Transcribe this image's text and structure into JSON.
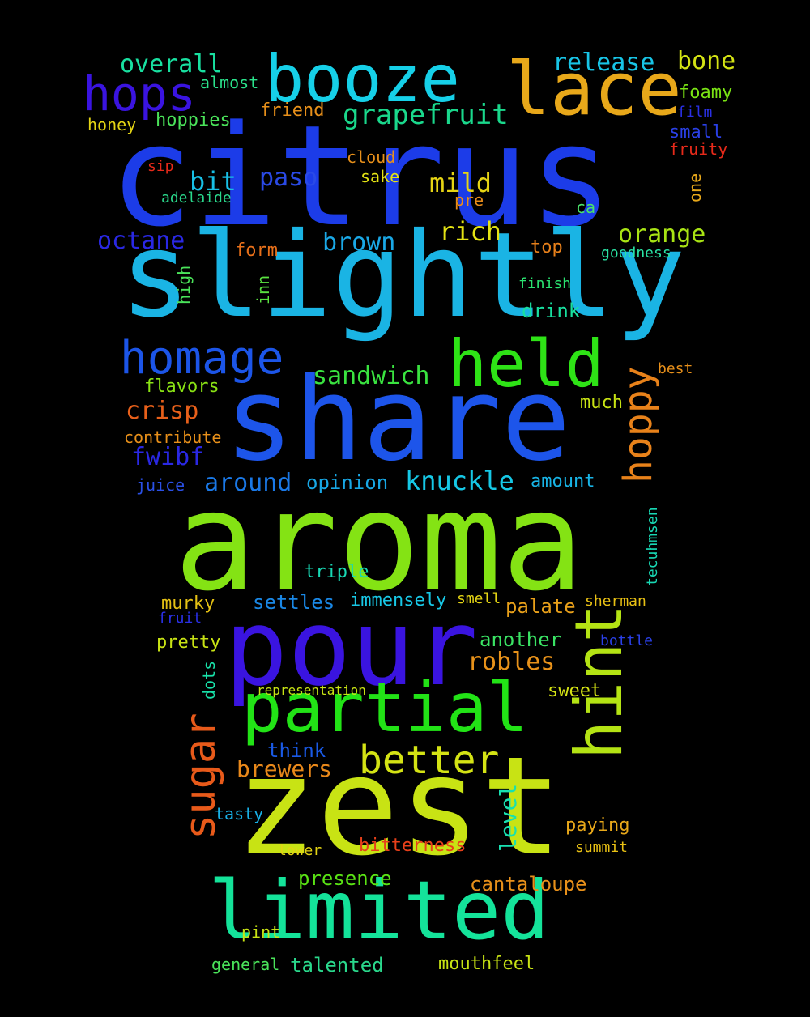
{
  "words": [
    {
      "text": "citrus",
      "color": "#1c3ce8"
    },
    {
      "text": "slightly",
      "color": "#1ab4e4"
    },
    {
      "text": "aroma",
      "color": "#84e314"
    },
    {
      "text": "zest",
      "color": "#c8e314"
    },
    {
      "text": "share",
      "color": "#1d55ea"
    },
    {
      "text": "pour",
      "color": "#3a14e0"
    },
    {
      "text": "limited",
      "color": "#14e39a"
    },
    {
      "text": "partial",
      "color": "#22e316"
    },
    {
      "text": "booze",
      "color": "#16d0e8"
    },
    {
      "text": "lace",
      "color": "#e8a81a"
    },
    {
      "text": "held",
      "color": "#2ee316"
    },
    {
      "text": "hint",
      "color": "#b4e314"
    },
    {
      "text": "homage",
      "color": "#1c55e8"
    },
    {
      "text": "hops",
      "color": "#3a14e0"
    },
    {
      "text": "better",
      "color": "#d4e314"
    },
    {
      "text": "sugar",
      "color": "#e85a1a"
    },
    {
      "text": "hoppy",
      "color": "#e8821a"
    },
    {
      "text": "grapefruit",
      "color": "#1ad88c"
    },
    {
      "text": "overall",
      "color": "#18e0a0"
    },
    {
      "text": "release",
      "color": "#18c4e6"
    },
    {
      "text": "bone",
      "color": "#d4e314"
    },
    {
      "text": "knuckle",
      "color": "#16c8e6"
    },
    {
      "text": "sandwich",
      "color": "#3ae340"
    },
    {
      "text": "orange",
      "color": "#a8e314"
    },
    {
      "text": "rich",
      "color": "#e4e314"
    },
    {
      "text": "mild",
      "color": "#e6d414"
    },
    {
      "text": "octane",
      "color": "#2a28e4"
    },
    {
      "text": "brown",
      "color": "#1aa8e6"
    },
    {
      "text": "paso",
      "color": "#2a4ae6"
    },
    {
      "text": "bit",
      "color": "#18c0e6"
    },
    {
      "text": "crisp",
      "color": "#e8601a"
    },
    {
      "text": "fwibf",
      "color": "#2a28e4"
    },
    {
      "text": "around",
      "color": "#1a78e6"
    },
    {
      "text": "opinion",
      "color": "#18a8e6"
    },
    {
      "text": "robles",
      "color": "#e8921a"
    },
    {
      "text": "brewers",
      "color": "#e8881a"
    },
    {
      "text": "think",
      "color": "#1a5ae6"
    },
    {
      "text": "level",
      "color": "#18e0b0"
    },
    {
      "text": "cantaloupe",
      "color": "#e8901a"
    },
    {
      "text": "presence",
      "color": "#5ae314"
    },
    {
      "text": "talented",
      "color": "#2ad88c"
    },
    {
      "text": "mouthfeel",
      "color": "#c8e314"
    },
    {
      "text": "drink",
      "color": "#18e0a0"
    },
    {
      "text": "sweet",
      "color": "#d4e314"
    },
    {
      "text": "another",
      "color": "#3ae364"
    },
    {
      "text": "palate",
      "color": "#e8a01a"
    },
    {
      "text": "settles",
      "color": "#1a88e6"
    },
    {
      "text": "immensely",
      "color": "#18c8e6"
    },
    {
      "text": "triple",
      "color": "#18d8b4"
    },
    {
      "text": "murky",
      "color": "#e4c014"
    },
    {
      "text": "pretty",
      "color": "#c8e314"
    },
    {
      "text": "paying",
      "color": "#e8a81a"
    },
    {
      "text": "bitterness",
      "color": "#e8401a"
    },
    {
      "text": "amount",
      "color": "#18b4e6"
    },
    {
      "text": "much",
      "color": "#c8e314"
    },
    {
      "text": "flavors",
      "color": "#8ae314"
    },
    {
      "text": "foamy",
      "color": "#7ae314"
    },
    {
      "text": "small",
      "color": "#2a40e6"
    },
    {
      "text": "fruity",
      "color": "#e82a1a"
    },
    {
      "text": "friend",
      "color": "#e8901a"
    },
    {
      "text": "almost",
      "color": "#2ae38c"
    },
    {
      "text": "hoppies",
      "color": "#4ae35a"
    },
    {
      "text": "honey",
      "color": "#e4d414"
    },
    {
      "text": "cloud",
      "color": "#e8901a"
    },
    {
      "text": "sake",
      "color": "#e4e314"
    },
    {
      "text": "pre",
      "color": "#e88c1a"
    },
    {
      "text": "ca",
      "color": "#4ae36a"
    },
    {
      "text": "top",
      "color": "#e8801a"
    },
    {
      "text": "form",
      "color": "#e8701a"
    },
    {
      "text": "goodness",
      "color": "#2ae3a4"
    },
    {
      "text": "finish",
      "color": "#2ae370"
    },
    {
      "text": "high",
      "color": "#4ae35a"
    },
    {
      "text": "inn",
      "color": "#5ae340"
    },
    {
      "text": "one",
      "color": "#e8a81a"
    },
    {
      "text": "best",
      "color": "#e8901a"
    },
    {
      "text": "contribute",
      "color": "#e8901a"
    },
    {
      "text": "juice",
      "color": "#2a50e6"
    },
    {
      "text": "fruit",
      "color": "#2a30e6"
    },
    {
      "text": "bottle",
      "color": "#2a40e6"
    },
    {
      "text": "sherman",
      "color": "#e8c014"
    },
    {
      "text": "smell",
      "color": "#e4d414"
    },
    {
      "text": "tecuhmsen",
      "color": "#18d8b4"
    },
    {
      "text": "dots",
      "color": "#18e0a8"
    },
    {
      "text": "representation",
      "color": "#c8e314"
    },
    {
      "text": "tasty",
      "color": "#18b0e6"
    },
    {
      "text": "lower",
      "color": "#e4d414"
    },
    {
      "text": "summit",
      "color": "#e8c014"
    },
    {
      "text": "pint",
      "color": "#c8e314"
    },
    {
      "text": "general",
      "color": "#4ae35a"
    },
    {
      "text": "film",
      "color": "#2a30e6"
    },
    {
      "text": "sip",
      "color": "#e82a1a"
    },
    {
      "text": "adelaide",
      "color": "#2ad88c"
    }
  ]
}
